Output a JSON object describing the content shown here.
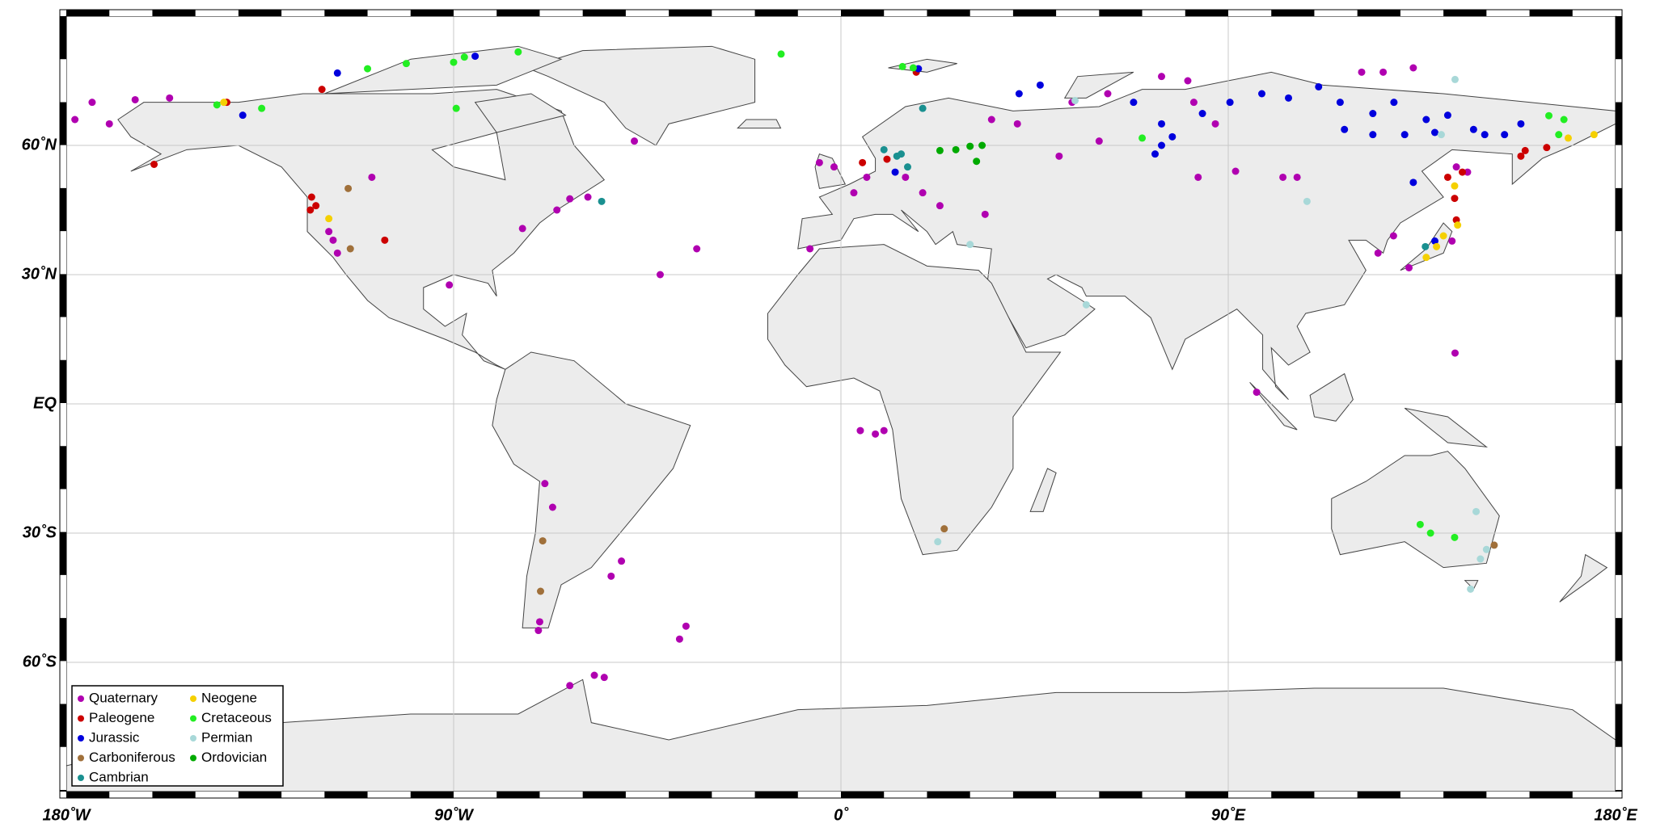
{
  "chart_data": {
    "type": "scatter",
    "xlim": [
      -180,
      180
    ],
    "ylim": [
      -90,
      90
    ],
    "xticks": [
      {
        "value": -180,
        "label": "180˚W"
      },
      {
        "value": -90,
        "label": "90˚W"
      },
      {
        "value": 0,
        "label": "0˚"
      },
      {
        "value": 90,
        "label": "90˚E"
      },
      {
        "value": 180,
        "label": "180˚E"
      }
    ],
    "yticks": [
      {
        "value": 60,
        "label": "60˚N"
      },
      {
        "value": 30,
        "label": "30˚N"
      },
      {
        "value": 0,
        "label": "EQ"
      },
      {
        "value": -30,
        "label": "30˚S"
      },
      {
        "value": -60,
        "label": "60˚S"
      }
    ],
    "grid": true,
    "legend": "lower left",
    "series": [
      {
        "name": "Quaternary",
        "color": "#b000b0",
        "x": [
          -178,
          -174,
          -164,
          -156,
          -170,
          -48,
          -5,
          -1.6,
          3,
          6,
          15,
          19,
          23,
          33.5,
          35,
          41,
          53.7,
          60,
          50.7,
          62,
          74.5,
          80.6,
          82,
          87,
          83,
          91.7,
          102.7,
          106,
          121,
          126,
          133,
          -109,
          -119,
          -118,
          -117,
          -74,
          -63,
          -66,
          -58.8,
          -33.5,
          -42,
          -91,
          -7.2,
          96.6,
          142.7,
          124.8,
          128.4,
          142,
          132,
          143,
          145.6,
          4.5,
          8,
          10,
          -68.8,
          -67,
          -51,
          -53.4,
          -36,
          -37.5,
          -70,
          -70.3,
          -57.3,
          -55,
          -63
        ],
        "y": [
          66,
          70,
          70.6,
          71,
          65,
          61,
          56,
          55,
          49,
          52.6,
          52.6,
          49,
          46,
          44,
          66,
          65,
          70,
          61,
          57.5,
          72,
          76,
          75,
          70,
          65,
          52.6,
          54,
          52.6,
          52.6,
          77,
          77,
          78,
          52.6,
          40,
          38,
          35,
          40.7,
          47.6,
          45,
          48,
          36,
          30,
          27.6,
          36,
          2.7,
          11.8,
          35,
          39,
          37.8,
          31.6,
          55,
          53.8,
          -6.2,
          -7,
          -6.2,
          -18.5,
          -24,
          -36.5,
          -40,
          -51.6,
          -54.6,
          -50.6,
          -52.6,
          -63,
          -63.5,
          -65.4
        ]
      },
      {
        "name": "Paleogene",
        "color": "#cc0000",
        "x": [
          -159.6,
          -120.6,
          -123,
          -122,
          -123.3,
          -106,
          10.7,
          5,
          17.5,
          141,
          142.6,
          143,
          144.4,
          158,
          159,
          164,
          -142.7
        ],
        "y": [
          55.6,
          73,
          48,
          46,
          45,
          38,
          56.8,
          56,
          77,
          52.6,
          47.7,
          42.7,
          53.8,
          57.5,
          58.8,
          59.5,
          70
        ]
      },
      {
        "name": "Jurassic",
        "color": "#0000dd",
        "x": [
          -117,
          -85,
          18,
          12.6,
          41.4,
          46.3,
          68,
          74.5,
          77,
          73,
          84,
          90.4,
          97.8,
          104,
          111,
          116,
          117,
          123.6,
          128.5,
          131,
          136,
          138,
          141,
          147,
          149.6,
          154.2,
          158,
          133,
          123.6,
          138,
          74.5,
          -139
        ],
        "y": [
          76.8,
          80.7,
          77.8,
          53.8,
          72,
          74,
          70,
          65,
          62,
          58,
          67.4,
          70,
          72,
          71,
          73.6,
          70,
          63.7,
          67.4,
          70,
          62.5,
          66,
          63,
          67,
          63.7,
          62.5,
          62.5,
          65,
          51.4,
          62.5,
          37.8,
          60,
          67
        ]
      },
      {
        "name": "Carboniferous",
        "color": "#a0703a",
        "x": [
          -114.5,
          -114,
          24,
          -69.3,
          -69.8,
          151.8
        ],
        "y": [
          50,
          36,
          -29,
          -31.8,
          -43.5,
          -32.8
        ]
      },
      {
        "name": "Cambrian",
        "color": "#1a9090",
        "x": [
          10,
          13,
          15.5,
          19,
          -55.6,
          135.8,
          14
        ],
        "y": [
          59,
          57.5,
          55,
          68.6,
          47,
          36.5,
          58
        ]
      },
      {
        "name": "Neogene",
        "color": "#f5d000",
        "x": [
          -143.4,
          -119,
          169,
          175,
          142.6,
          143.3,
          140,
          138.4,
          136
        ],
        "y": [
          70,
          43,
          61.7,
          62.5,
          50.6,
          41.5,
          39,
          36.5,
          34
        ]
      },
      {
        "name": "Cretaceous",
        "color": "#22ee22",
        "x": [
          -145,
          -134.6,
          -110,
          -101,
          -90,
          -87.5,
          -75,
          -13.9,
          -89.4,
          14.3,
          16.8,
          70,
          164.5,
          166.8,
          134.6,
          137,
          142.6,
          168
        ],
        "y": [
          69.4,
          68.6,
          77.8,
          79,
          79.3,
          80.5,
          81.7,
          81.2,
          68.6,
          78.3,
          78,
          61.7,
          66.9,
          62.5,
          -28,
          -30,
          -31,
          66
        ]
      },
      {
        "name": "Permian",
        "color": "#a8d8d8",
        "x": [
          54.4,
          108.3,
          142.7,
          30,
          57,
          22.5,
          147.6,
          150,
          148.6,
          146.3,
          139.5
        ],
        "y": [
          70.4,
          47,
          75.3,
          37,
          23,
          -32,
          -25,
          -33.8,
          -36,
          -43,
          62.5
        ]
      },
      {
        "name": "Ordovician",
        "color": "#00aa00",
        "x": [
          23,
          26.7,
          30,
          32.8,
          31.5
        ],
        "y": [
          58.8,
          59,
          59.8,
          60,
          56.3
        ]
      }
    ]
  }
}
